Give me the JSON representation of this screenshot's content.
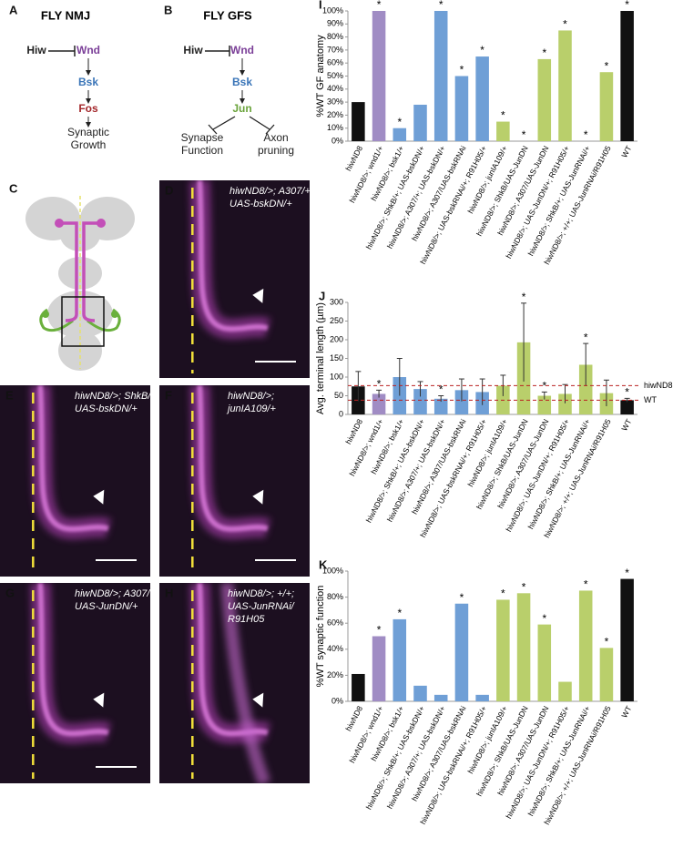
{
  "panels": {
    "A": {
      "letter": "A",
      "title": "FLY NMJ",
      "nodes": [
        "Hiw",
        "Wnd",
        "Bsk",
        "Fos"
      ],
      "outcome": [
        "Synaptic",
        "Growth"
      ]
    },
    "B": {
      "letter": "B",
      "title": "FLY GFS",
      "nodes": [
        "Hiw",
        "Wnd",
        "Bsk",
        "Jun"
      ],
      "outcomes": [
        [
          "Synapse",
          "Function"
        ],
        [
          "Axon",
          "pruning"
        ]
      ]
    },
    "C": {
      "letter": "C"
    },
    "D": {
      "letter": "D",
      "label": [
        "hiwND8/>; A307/+;",
        "UAS-bskDN/+"
      ]
    },
    "E": {
      "letter": "E",
      "label": [
        "hiwND8/>; ShkB/+;",
        "UAS-bskDN/+"
      ]
    },
    "F": {
      "letter": "F",
      "label": [
        "hiwND8/>;",
        "junIA109/+"
      ]
    },
    "G": {
      "letter": "G",
      "label": [
        "hiwND8/>; A307/",
        "UAS-JunDN/+"
      ]
    },
    "H": {
      "letter": "H",
      "label": [
        "hiwND8/>; +/+;",
        "UAS-JunRNAi/",
        "R91H05"
      ]
    }
  },
  "chart_data": [
    {
      "type": "bar",
      "panel": "I",
      "ylabel": "%WT GF anatomy",
      "categories": [
        "hiwND8",
        "hiwND8/>; wnd1/+",
        "hiwND8/>; bsk1/+",
        "hiwND8/>; ShkB/+; UAS-bskDN/+",
        "hiwND8/>; A307/+; UAS-bskDN/+",
        "hiwND8/>; A307/UAS-bskRNAi",
        "hiwND8/>; UAS-bskRNAi/+; R91H05/+",
        "hiwND8/>; junIA109/+",
        "hiwND8/>; ShkB/UAS-JunDN",
        "hiwND8/>; A307/UAS-JunDN",
        "hiwND8/>; UAS-JunDN/+; R91H05/+",
        "hiwND8/>; ShkB/+; UAS-JunRNAi/+",
        "hiwND8/>; +/+; UAS-JunRNAi/R91H05",
        "WT"
      ],
      "values": [
        30,
        100,
        10,
        28,
        100,
        50,
        65,
        15,
        0,
        63,
        85,
        0,
        53,
        100
      ],
      "colors": [
        "#111111",
        "#a08cc4",
        "#6f9fd6",
        "#6f9fd6",
        "#6f9fd6",
        "#6f9fd6",
        "#6f9fd6",
        "#b9cf6b",
        "#b9cf6b",
        "#b9cf6b",
        "#b9cf6b",
        "#b9cf6b",
        "#b9cf6b",
        "#111111"
      ],
      "annotations": [
        null,
        "*",
        "*",
        null,
        "*",
        "*",
        "*",
        "*",
        "*",
        "*",
        "*",
        "*",
        "*",
        "*"
      ],
      "ylim": [
        0,
        100
      ],
      "yticks": [
        {
          "value": 0,
          "label": "0%"
        },
        {
          "value": 10,
          "label": "10%"
        },
        {
          "value": 20,
          "label": "20%"
        },
        {
          "value": 30,
          "label": "30%"
        },
        {
          "value": 40,
          "label": "40%"
        },
        {
          "value": 50,
          "label": "50%"
        },
        {
          "value": 60,
          "label": "60%"
        },
        {
          "value": 70,
          "label": "70%"
        },
        {
          "value": 80,
          "label": "80%"
        },
        {
          "value": 90,
          "label": "90%"
        },
        {
          "value": 100,
          "label": "100%"
        }
      ],
      "grid": false
    },
    {
      "type": "bar",
      "panel": "J",
      "ylabel": "Avg. terminal length (µm)",
      "categories": [
        "hiwND8",
        "hiwND8/>; wnd1/+",
        "hiwND8/>; bsk1/+",
        "hiwND8/>; ShkB/+; UAS-bskDN/+",
        "hiwND8/>; A307/+; UAS-bskDN/+",
        "hiwND8/>; A307/UAS-bskRNAi",
        "hiwND8/>; UAS-bskRNAi/+; R91H05/+",
        "hiwND8/>; junIA109/+",
        "hiwND8/>; ShkB/UAS-JunDN",
        "hiwND8/>; A307/UAS-JunDN",
        "hiwND8/>; UAS-JunDN/+; R91H05/+",
        "hiwND8/>; ShkB/+; UAS-JunRNAi/+",
        "hiwND8/>; +/+; UAS-JunRNAi/R91H05",
        "WT"
      ],
      "values": [
        75,
        55,
        100,
        68,
        42,
        65,
        60,
        77,
        193,
        50,
        55,
        133,
        57,
        38
      ],
      "errors": [
        40,
        10,
        50,
        20,
        8,
        30,
        35,
        28,
        105,
        10,
        25,
        57,
        35,
        5
      ],
      "colors": [
        "#111111",
        "#a08cc4",
        "#6f9fd6",
        "#6f9fd6",
        "#6f9fd6",
        "#6f9fd6",
        "#6f9fd6",
        "#b9cf6b",
        "#b9cf6b",
        "#b9cf6b",
        "#b9cf6b",
        "#b9cf6b",
        "#b9cf6b",
        "#111111"
      ],
      "annotations": [
        null,
        "*",
        null,
        null,
        "*",
        null,
        null,
        null,
        "*",
        "*",
        null,
        "*",
        null,
        "*"
      ],
      "reference_lines": [
        {
          "label": "hiwND8",
          "value": 77
        },
        {
          "label": "WT",
          "value": 38
        }
      ],
      "ylim": [
        0,
        300
      ],
      "yticks": [
        0,
        50,
        100,
        150,
        200,
        250,
        300
      ],
      "grid": false
    },
    {
      "type": "bar",
      "panel": "K",
      "ylabel": "%WT synaptic function",
      "categories": [
        "hiwND8",
        "hiwND8/>; wnd1/+",
        "hiwND8/>; bsk1/+",
        "hiwND8/>; ShkB/+; UAS-bskDN/+",
        "hiwND8/>; A307/+; UAS-bskDN/+",
        "hiwND8/>; A307/UAS-bskRNAi",
        "hiwND8/>; UAS-bskRNAi/+; R91H05/+",
        "hiwND8/>; junIA109/+",
        "hiwND8/>; ShkB/UAS-JunDN",
        "hiwND8/>; A307/UAS-JunDN",
        "hiwND8/>; UAS-JunDN/+; R91H05/+",
        "hiwND8/>; ShkB/+; UAS-JunRNAi/+",
        "hiwND8/>; +/+; UAS-JunRNAi/R91H05",
        "WT"
      ],
      "values": [
        21,
        50,
        63,
        12,
        5,
        75,
        5,
        78,
        83,
        59,
        15,
        85,
        41,
        94
      ],
      "colors": [
        "#111111",
        "#a08cc4",
        "#6f9fd6",
        "#6f9fd6",
        "#6f9fd6",
        "#6f9fd6",
        "#6f9fd6",
        "#b9cf6b",
        "#b9cf6b",
        "#b9cf6b",
        "#b9cf6b",
        "#b9cf6b",
        "#b9cf6b",
        "#111111"
      ],
      "annotations": [
        null,
        "*",
        "*",
        null,
        null,
        "*",
        null,
        "*",
        "*",
        "*",
        null,
        "*",
        "*",
        "*"
      ],
      "ylim": [
        0,
        100
      ],
      "yticks": [
        {
          "value": 0,
          "label": "0%"
        },
        {
          "value": 20,
          "label": "20%"
        },
        {
          "value": 40,
          "label": "40%"
        },
        {
          "value": 60,
          "label": "60%"
        },
        {
          "value": 80,
          "label": "80%"
        },
        {
          "value": 100,
          "label": "100%"
        }
      ],
      "grid": false
    }
  ]
}
